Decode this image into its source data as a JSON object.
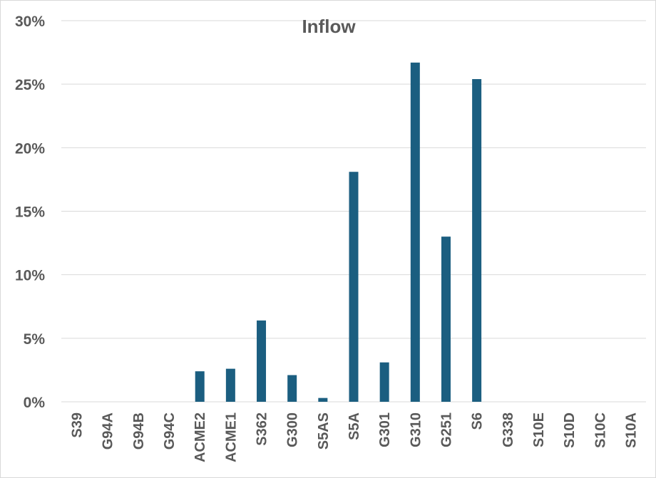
{
  "chart_data": {
    "type": "bar",
    "title": "Inflow",
    "xlabel": "",
    "ylabel": "",
    "categories": [
      "S39",
      "G94A",
      "G94B",
      "G94C",
      "ACME2",
      "ACME1",
      "S362",
      "G300",
      "S5AS",
      "S5A",
      "G301",
      "G310",
      "G251",
      "S6",
      "G338",
      "S10E",
      "S10D",
      "S10C",
      "S10A"
    ],
    "values": [
      0,
      0,
      0,
      0,
      2.4,
      2.6,
      6.4,
      2.1,
      0.3,
      18.1,
      3.1,
      26.7,
      13.0,
      25.4,
      0,
      0,
      0,
      0,
      0
    ],
    "value_unit": "%",
    "ylim": [
      0,
      30
    ],
    "yticks": [
      0,
      5,
      10,
      15,
      20,
      25,
      30
    ],
    "ytick_labels": [
      "0%",
      "5%",
      "10%",
      "15%",
      "20%",
      "25%",
      "30%"
    ],
    "grid": true,
    "legend": "none",
    "bar_color": "#1b5e80"
  }
}
